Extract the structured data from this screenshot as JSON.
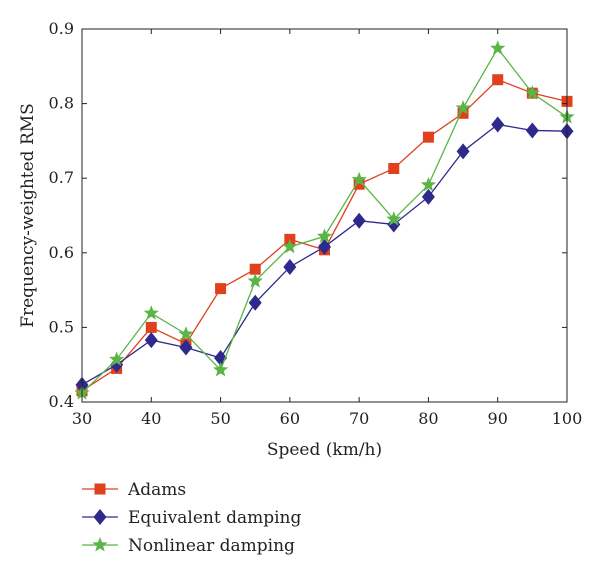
{
  "chart_data": {
    "type": "line",
    "xlabel": "Speed (km/h)",
    "ylabel": "Frequency-weighted RMS",
    "xlim": [
      30,
      100
    ],
    "ylim": [
      0.4,
      0.9
    ],
    "x_ticks": [
      30,
      40,
      50,
      60,
      70,
      80,
      90,
      100
    ],
    "y_ticks": [
      0.4,
      0.5,
      0.6,
      0.7,
      0.8,
      0.9
    ],
    "grid": false,
    "legend_position": "bottom",
    "x": [
      30,
      35,
      40,
      45,
      50,
      55,
      60,
      65,
      70,
      75,
      80,
      85,
      90,
      95,
      100
    ],
    "series": [
      {
        "name": "Adams",
        "color": "#e0401c",
        "marker": "square",
        "values": [
          0.415,
          0.445,
          0.5,
          0.478,
          0.552,
          0.578,
          0.618,
          0.604,
          0.692,
          0.713,
          0.755,
          0.787,
          0.832,
          0.814,
          0.803
        ]
      },
      {
        "name": "Equivalent damping",
        "color": "#2d2a8c",
        "marker": "diamond",
        "values": [
          0.423,
          0.45,
          0.483,
          0.473,
          0.459,
          0.533,
          0.581,
          0.608,
          0.643,
          0.638,
          0.675,
          0.736,
          0.772,
          0.764,
          0.763
        ]
      },
      {
        "name": "Nonlinear damping",
        "color": "#5bb546",
        "marker": "star",
        "values": [
          0.412,
          0.457,
          0.519,
          0.491,
          0.443,
          0.562,
          0.608,
          0.622,
          0.698,
          0.645,
          0.691,
          0.794,
          0.874,
          0.814,
          0.782
        ]
      }
    ]
  }
}
